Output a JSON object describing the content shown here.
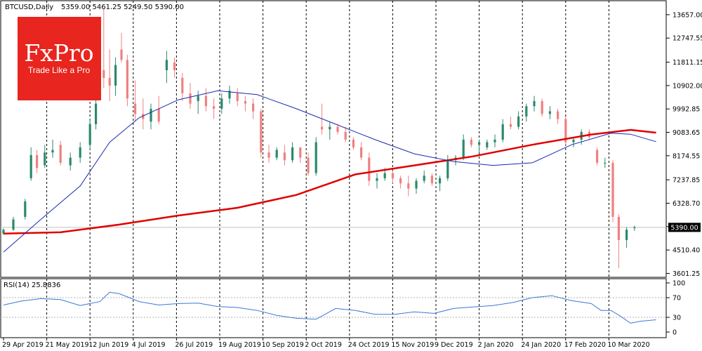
{
  "chart_data": [
    {
      "type": "candlestick",
      "title": "BTCUSD,Daily",
      "ohlc_label": "5359.00 5461.25 5249.50 5390.00",
      "last_price": 5390.0,
      "last_price_label": "5390.00",
      "ylim": [
        3450,
        14200
      ],
      "y_ticks": [
        "13657.00",
        "12747.55",
        "11811.15",
        "10902.00",
        "9992.85",
        "9083.65",
        "8174.55",
        "7237.85",
        "6328.70",
        "5419.55",
        "4510.40",
        "3601.25"
      ],
      "y_tick_values": [
        13657.0,
        12747.55,
        11811.15,
        10902.0,
        9992.85,
        9083.65,
        8174.55,
        7237.85,
        6328.7,
        5419.55,
        4510.4,
        3601.25
      ],
      "x_labels": [
        "29 Apr 2019",
        "21 May 2019",
        "12 Jun 2019",
        "4 Jul 2019",
        "26 Jul 2019",
        "19 Aug 2019",
        "10 Sep 2019",
        "2 Oct 2019",
        "24 Oct 2019",
        "15 Nov 2019",
        "9 Dec 2019",
        "2 Jan 2020",
        "24 Jan 2020",
        "17 Feb 2020",
        "10 Mar 2020"
      ],
      "ma_slow_x": [
        1,
        30,
        60,
        90,
        120,
        150,
        180,
        210,
        240,
        270,
        300,
        320,
        333
      ],
      "ma_slow_values": [
        5150,
        5200,
        5500,
        5850,
        6150,
        6650,
        7450,
        7800,
        8150,
        8600,
        9000,
        9180,
        9070
      ],
      "ma_fast_x": [
        1,
        20,
        40,
        55,
        70,
        90,
        110,
        130,
        150,
        170,
        190,
        210,
        230,
        250,
        270,
        290,
        310,
        320,
        333
      ],
      "ma_fast_values": [
        4430,
        5700,
        7000,
        8700,
        9650,
        10350,
        10700,
        10550,
        10000,
        9400,
        8800,
        8250,
        7950,
        7800,
        7900,
        8600,
        9050,
        9010,
        8720
      ],
      "series": [],
      "candles": [
        {
          "day": 1,
          "o": 5150,
          "h": 5350,
          "l": 5100,
          "c": 5300
        },
        {
          "day": 6,
          "o": 5300,
          "h": 5800,
          "l": 5250,
          "c": 5700
        },
        {
          "day": 12,
          "o": 5800,
          "h": 6500,
          "l": 5700,
          "c": 6400
        },
        {
          "day": 15,
          "o": 7300,
          "h": 8500,
          "l": 7200,
          "c": 8200
        },
        {
          "day": 18,
          "o": 8200,
          "h": 8400,
          "l": 7500,
          "c": 7700
        },
        {
          "day": 22,
          "o": 7800,
          "h": 8600,
          "l": 7700,
          "c": 8300
        },
        {
          "day": 26,
          "o": 8300,
          "h": 8800,
          "l": 8100,
          "c": 8400
        },
        {
          "day": 30,
          "o": 8600,
          "h": 8750,
          "l": 7800,
          "c": 7900
        },
        {
          "day": 35,
          "o": 7800,
          "h": 8300,
          "l": 7600,
          "c": 8100
        },
        {
          "day": 40,
          "o": 8100,
          "h": 8700,
          "l": 7900,
          "c": 8500
        },
        {
          "day": 45,
          "o": 8600,
          "h": 9600,
          "l": 8400,
          "c": 9400
        },
        {
          "day": 48,
          "o": 9400,
          "h": 10400,
          "l": 9200,
          "c": 10200
        },
        {
          "day": 52,
          "o": 11500,
          "h": 13900,
          "l": 10800,
          "c": 11200
        },
        {
          "day": 55,
          "o": 11200,
          "h": 12300,
          "l": 10300,
          "c": 10900
        },
        {
          "day": 58,
          "o": 10900,
          "h": 12000,
          "l": 10500,
          "c": 11700
        },
        {
          "day": 61,
          "o": 12300,
          "h": 12950,
          "l": 11800,
          "c": 11900
        },
        {
          "day": 64,
          "o": 11900,
          "h": 12100,
          "l": 10100,
          "c": 10400
        },
        {
          "day": 68,
          "o": 10200,
          "h": 11100,
          "l": 9500,
          "c": 9800
        },
        {
          "day": 72,
          "o": 9800,
          "h": 10400,
          "l": 9200,
          "c": 9600
        },
        {
          "day": 76,
          "o": 9500,
          "h": 10200,
          "l": 9200,
          "c": 10000
        },
        {
          "day": 80,
          "o": 10000,
          "h": 10500,
          "l": 9400,
          "c": 9500
        },
        {
          "day": 84,
          "o": 11500,
          "h": 12250,
          "l": 11000,
          "c": 11900
        },
        {
          "day": 88,
          "o": 11800,
          "h": 12000,
          "l": 11200,
          "c": 11500
        },
        {
          "day": 92,
          "o": 11200,
          "h": 11400,
          "l": 10300,
          "c": 10600
        },
        {
          "day": 96,
          "o": 10600,
          "h": 11000,
          "l": 10000,
          "c": 10200
        },
        {
          "day": 100,
          "o": 10300,
          "h": 10700,
          "l": 9800,
          "c": 10500
        },
        {
          "day": 104,
          "o": 10500,
          "h": 10800,
          "l": 9900,
          "c": 10100
        },
        {
          "day": 108,
          "o": 10100,
          "h": 10400,
          "l": 9600,
          "c": 10000
        },
        {
          "day": 112,
          "o": 10000,
          "h": 10600,
          "l": 9800,
          "c": 10400
        },
        {
          "day": 116,
          "o": 10400,
          "h": 10900,
          "l": 10200,
          "c": 10700
        },
        {
          "day": 120,
          "o": 10600,
          "h": 10800,
          "l": 10100,
          "c": 10300
        },
        {
          "day": 124,
          "o": 10300,
          "h": 10500,
          "l": 9900,
          "c": 10200
        },
        {
          "day": 128,
          "o": 10200,
          "h": 10400,
          "l": 9600,
          "c": 9900
        },
        {
          "day": 132,
          "o": 9900,
          "h": 10000,
          "l": 8100,
          "c": 8300
        },
        {
          "day": 136,
          "o": 8300,
          "h": 8600,
          "l": 7900,
          "c": 8100
        },
        {
          "day": 140,
          "o": 8100,
          "h": 8500,
          "l": 8000,
          "c": 8400
        },
        {
          "day": 144,
          "o": 8300,
          "h": 8600,
          "l": 7800,
          "c": 8000
        },
        {
          "day": 148,
          "o": 8000,
          "h": 8700,
          "l": 7900,
          "c": 8500
        },
        {
          "day": 152,
          "o": 8500,
          "h": 8500,
          "l": 7900,
          "c": 8100
        },
        {
          "day": 156,
          "o": 8100,
          "h": 8300,
          "l": 7400,
          "c": 7500
        },
        {
          "day": 160,
          "o": 7500,
          "h": 8900,
          "l": 7400,
          "c": 8700
        },
        {
          "day": 163,
          "o": 9300,
          "h": 10200,
          "l": 9000,
          "c": 9200
        },
        {
          "day": 167,
          "o": 9200,
          "h": 9500,
          "l": 8800,
          "c": 9300
        },
        {
          "day": 171,
          "o": 9300,
          "h": 9400,
          "l": 9000,
          "c": 9100
        },
        {
          "day": 175,
          "o": 9100,
          "h": 9300,
          "l": 8700,
          "c": 8800
        },
        {
          "day": 179,
          "o": 8800,
          "h": 8900,
          "l": 8400,
          "c": 8500
        },
        {
          "day": 183,
          "o": 8500,
          "h": 8700,
          "l": 8000,
          "c": 8100
        },
        {
          "day": 187,
          "o": 8100,
          "h": 8300,
          "l": 7000,
          "c": 7200
        },
        {
          "day": 191,
          "o": 7200,
          "h": 7500,
          "l": 6900,
          "c": 7300
        },
        {
          "day": 195,
          "o": 7300,
          "h": 7700,
          "l": 7200,
          "c": 7500
        },
        {
          "day": 199,
          "o": 7500,
          "h": 7600,
          "l": 7100,
          "c": 7300
        },
        {
          "day": 203,
          "o": 7300,
          "h": 7400,
          "l": 6900,
          "c": 7100
        },
        {
          "day": 207,
          "o": 7100,
          "h": 7400,
          "l": 6600,
          "c": 6900
        },
        {
          "day": 211,
          "o": 6900,
          "h": 7300,
          "l": 6700,
          "c": 7200
        },
        {
          "day": 215,
          "o": 7200,
          "h": 7600,
          "l": 7100,
          "c": 7400
        },
        {
          "day": 219,
          "o": 7400,
          "h": 7500,
          "l": 7000,
          "c": 7100
        },
        {
          "day": 223,
          "o": 7100,
          "h": 7400,
          "l": 6800,
          "c": 7300
        },
        {
          "day": 227,
          "o": 7300,
          "h": 8200,
          "l": 7200,
          "c": 8000
        },
        {
          "day": 231,
          "o": 8000,
          "h": 8200,
          "l": 7800,
          "c": 8100
        },
        {
          "day": 235,
          "o": 8100,
          "h": 9000,
          "l": 8000,
          "c": 8800
        },
        {
          "day": 239,
          "o": 8800,
          "h": 8900,
          "l": 8500,
          "c": 8600
        },
        {
          "day": 243,
          "o": 8600,
          "h": 8800,
          "l": 8300,
          "c": 8700
        },
        {
          "day": 247,
          "o": 8500,
          "h": 8800,
          "l": 8400,
          "c": 8700
        },
        {
          "day": 251,
          "o": 8700,
          "h": 9000,
          "l": 8500,
          "c": 8800
        },
        {
          "day": 255,
          "o": 8800,
          "h": 9600,
          "l": 8700,
          "c": 9400
        },
        {
          "day": 259,
          "o": 9400,
          "h": 9700,
          "l": 9200,
          "c": 9300
        },
        {
          "day": 263,
          "o": 9300,
          "h": 9900,
          "l": 9200,
          "c": 9700
        },
        {
          "day": 267,
          "o": 9700,
          "h": 10200,
          "l": 9500,
          "c": 10100
        },
        {
          "day": 271,
          "o": 10100,
          "h": 10500,
          "l": 9900,
          "c": 10300
        },
        {
          "day": 275,
          "o": 10300,
          "h": 10400,
          "l": 9700,
          "c": 9800
        },
        {
          "day": 279,
          "o": 9800,
          "h": 10100,
          "l": 9600,
          "c": 9900
        },
        {
          "day": 283,
          "o": 9900,
          "h": 10000,
          "l": 9400,
          "c": 9600
        },
        {
          "day": 287,
          "o": 9600,
          "h": 9700,
          "l": 8600,
          "c": 8700
        },
        {
          "day": 291,
          "o": 8700,
          "h": 8900,
          "l": 8500,
          "c": 8800
        },
        {
          "day": 295,
          "o": 8800,
          "h": 9200,
          "l": 8600,
          "c": 9100
        },
        {
          "day": 299,
          "o": 9100,
          "h": 9200,
          "l": 8800,
          "c": 8900
        },
        {
          "day": 303,
          "o": 8400,
          "h": 8500,
          "l": 7800,
          "c": 7900
        },
        {
          "day": 307,
          "o": 7900,
          "h": 8100,
          "l": 7700,
          "c": 7900
        },
        {
          "day": 311,
          "o": 7900,
          "h": 8000,
          "l": 5600,
          "c": 5800
        },
        {
          "day": 314,
          "o": 5800,
          "h": 5900,
          "l": 3800,
          "c": 4900
        },
        {
          "day": 318,
          "o": 4900,
          "h": 5400,
          "l": 4600,
          "c": 5300
        },
        {
          "day": 322,
          "o": 5359,
          "h": 5461,
          "l": 5249,
          "c": 5390
        }
      ]
    },
    {
      "type": "line",
      "title": "RSI(14) 25.8836",
      "ylim": [
        0,
        100
      ],
      "y_ticks": [
        "100",
        "70",
        "30",
        "0"
      ],
      "y_tick_values": [
        100,
        70,
        30,
        0
      ],
      "x": [
        1,
        10,
        20,
        30,
        40,
        50,
        55,
        60,
        65,
        70,
        80,
        90,
        100,
        110,
        120,
        130,
        140,
        150,
        160,
        170,
        180,
        190,
        200,
        210,
        220,
        230,
        240,
        250,
        260,
        270,
        280,
        290,
        300,
        305,
        310,
        315,
        320,
        325,
        333
      ],
      "values": [
        55,
        63,
        68,
        66,
        54,
        62,
        81,
        78,
        70,
        62,
        55,
        58,
        59,
        52,
        50,
        44,
        34,
        28,
        26,
        48,
        44,
        36,
        36,
        41,
        38,
        48,
        51,
        54,
        60,
        70,
        74,
        64,
        58,
        44,
        44,
        32,
        18,
        22,
        25
      ]
    }
  ]
}
